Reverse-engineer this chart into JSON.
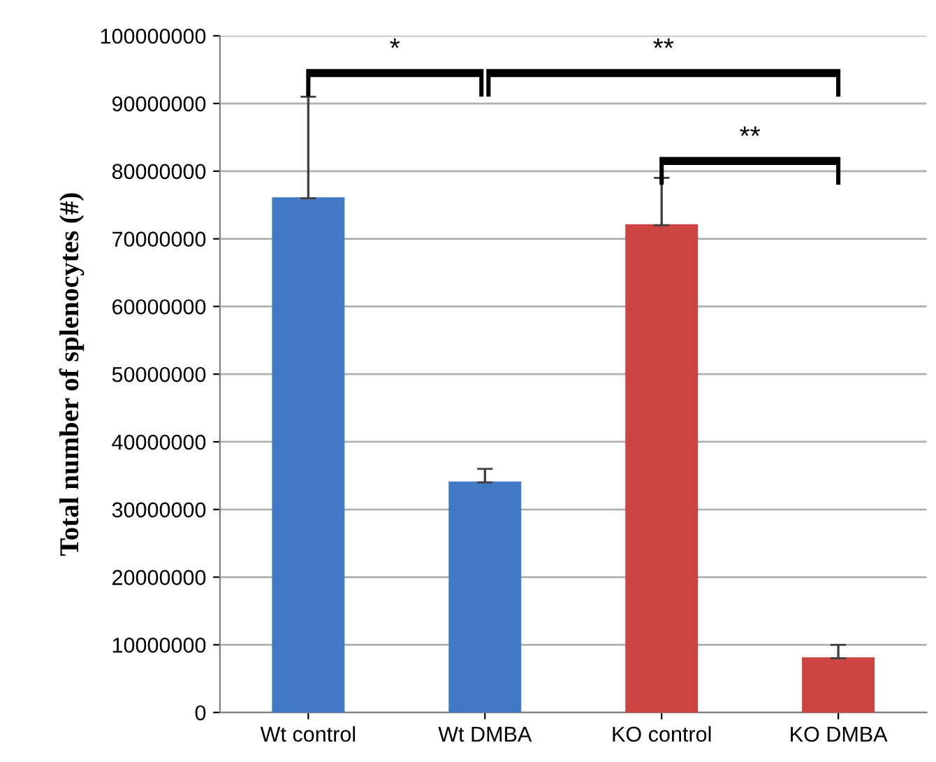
{
  "chart_data": {
    "type": "bar",
    "ylabel": "Total number of splenocytes (#)",
    "categories": [
      "Wt control",
      "Wt DMBA",
      "KO control",
      "KO DMBA"
    ],
    "values": [
      76000000,
      34000000,
      72000000,
      8000000
    ],
    "colors": [
      "#4179c6",
      "#4179c6",
      "#cc4341",
      "#cc4341"
    ],
    "errors": [
      15000000,
      2000000,
      7000000,
      2000000
    ],
    "ylim": [
      0,
      100000000
    ],
    "yticks": [
      0,
      10000000,
      20000000,
      30000000,
      40000000,
      50000000,
      60000000,
      70000000,
      80000000,
      90000000,
      100000000
    ],
    "grid": "y",
    "annotations": [
      "*",
      "**",
      "**"
    ]
  }
}
